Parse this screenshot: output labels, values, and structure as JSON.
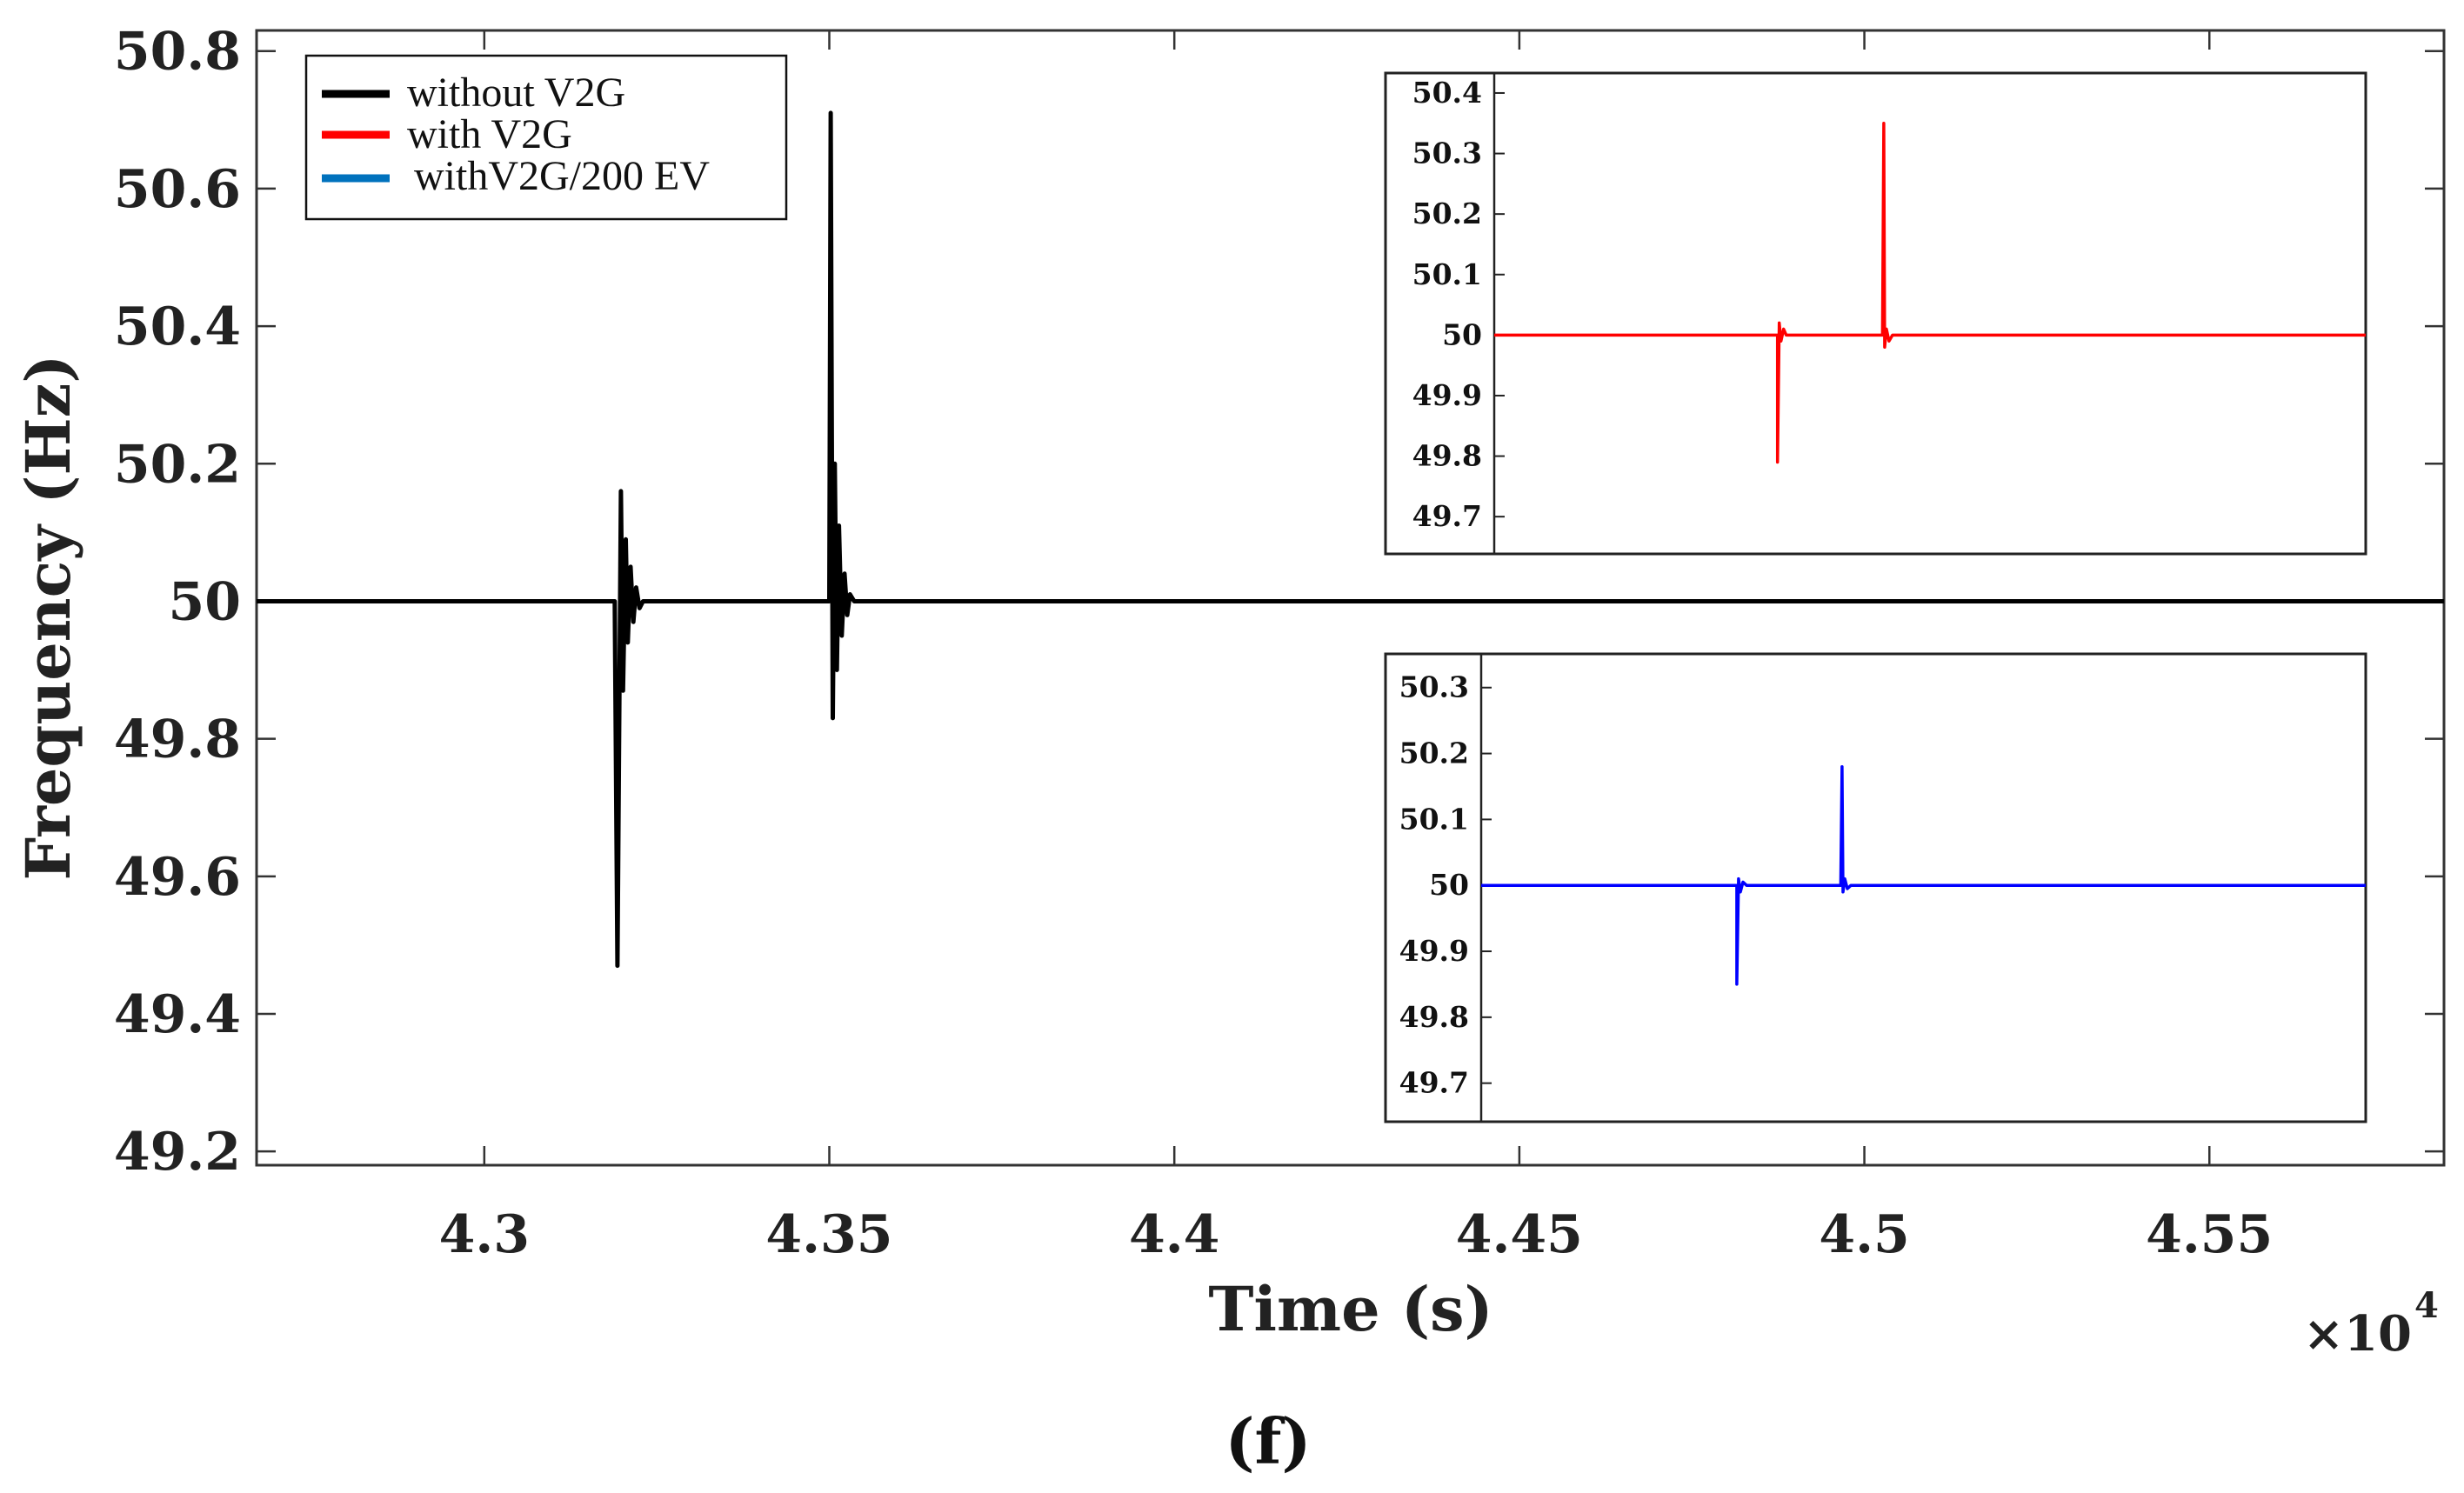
{
  "chart_data": {
    "type": "line",
    "ylabel": "Frequency (Hz)",
    "xlabel": "Time (s)",
    "x_exponent_label": "×10",
    "x_exponent_power": "4",
    "caption": "(f)",
    "xlim": [
      4.267,
      4.584
    ],
    "ylim": [
      49.18,
      50.83
    ],
    "x_ticks": [
      4.3,
      4.35,
      4.4,
      4.45,
      4.5,
      4.55
    ],
    "x_tick_labels": [
      "4.3",
      "4.35",
      "4.4",
      "4.45",
      "4.5",
      "4.55"
    ],
    "y_ticks": [
      49.2,
      49.4,
      49.6,
      49.8,
      50,
      50.2,
      50.4,
      50.6,
      50.8
    ],
    "y_tick_labels": [
      "49.2",
      "49.4",
      "49.6",
      "49.8",
      "50",
      "50.2",
      "50.4",
      "50.6",
      "50.8"
    ],
    "legend": [
      {
        "label": "without V2G",
        "color": "#000000"
      },
      {
        "label": "with V2G",
        "color": "#ff0000"
      },
      {
        "label": "withV2G/200 EV",
        "color": "#0072bd"
      }
    ],
    "series": [
      {
        "name": "without V2G",
        "color": "#000000",
        "x": [
          4.267,
          4.3189,
          4.3193,
          4.3198,
          4.3201,
          4.3205,
          4.3208,
          4.3212,
          4.3216,
          4.322,
          4.3225,
          4.323,
          4.3235,
          4.35,
          4.3502,
          4.3505,
          4.3508,
          4.3511,
          4.3514,
          4.3518,
          4.3522,
          4.3526,
          4.353,
          4.3536,
          4.584
        ],
        "y": [
          50.0,
          50.0,
          49.47,
          50.16,
          49.87,
          50.09,
          49.94,
          50.05,
          49.97,
          50.02,
          49.99,
          50.0,
          50.0,
          50.0,
          50.71,
          49.83,
          50.2,
          49.9,
          50.11,
          49.95,
          50.04,
          49.98,
          50.01,
          50.0,
          50.0
        ]
      }
    ],
    "insets": [
      {
        "name": "with V2G",
        "color": "#ff0000",
        "ylim": [
          49.66,
          50.41
        ],
        "y_ticks": [
          49.7,
          49.8,
          49.9,
          50,
          50.1,
          50.2,
          50.3,
          50.4
        ],
        "y_tick_labels": [
          "49.7",
          "49.8",
          "49.9",
          "50",
          "50.1",
          "50.2",
          "50.3",
          "50.4"
        ],
        "x": [
          0.0,
          0.325,
          0.325,
          0.327,
          0.329,
          0.332,
          0.335,
          0.4455,
          0.447,
          0.448,
          0.45,
          0.453,
          0.457,
          1.0
        ],
        "y": [
          50.0,
          50.0,
          49.79,
          50.02,
          49.99,
          50.01,
          50.0,
          50.0,
          50.35,
          49.98,
          50.01,
          49.99,
          50.0,
          50.0
        ]
      },
      {
        "name": "withV2G/200 EV",
        "color": "#0000ff",
        "ylim": [
          49.66,
          50.33
        ],
        "y_ticks": [
          49.7,
          49.8,
          49.9,
          50,
          50.1,
          50.2,
          50.3
        ],
        "y_tick_labels": [
          "49.7",
          "49.8",
          "49.9",
          "50",
          "50.1",
          "50.2",
          "50.3"
        ],
        "x": [
          0.0,
          0.289,
          0.289,
          0.291,
          0.293,
          0.296,
          0.3,
          0.4065,
          0.408,
          0.409,
          0.411,
          0.414,
          0.418,
          1.0
        ],
        "y": [
          50.0,
          50.0,
          49.85,
          50.01,
          49.99,
          50.005,
          50.0,
          50.0,
          50.18,
          49.99,
          50.01,
          49.995,
          50.0,
          50.0
        ]
      }
    ]
  }
}
